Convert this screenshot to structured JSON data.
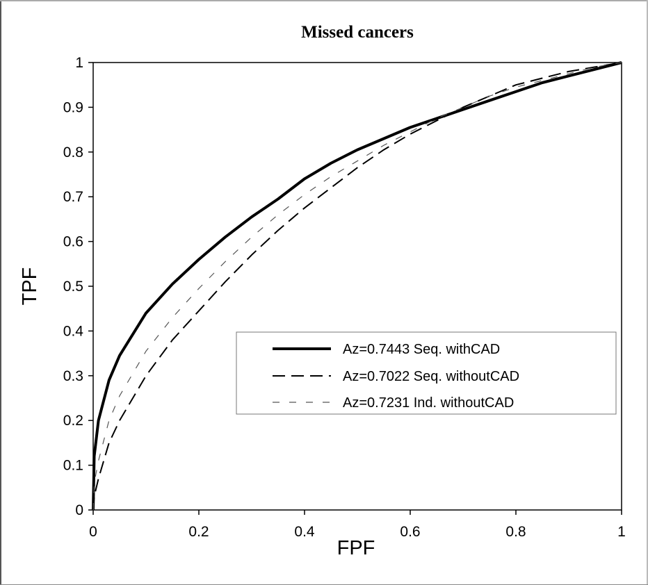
{
  "chart_data": {
    "type": "line",
    "title": "Missed cancers",
    "xlabel": "FPF",
    "ylabel": "TPF",
    "xlim": [
      0,
      1
    ],
    "ylim": [
      0,
      1
    ],
    "x_ticks": [
      "0",
      "0.2",
      "0.4",
      "0.6",
      "0.8",
      "1"
    ],
    "y_ticks": [
      "0",
      "0.1",
      "0.2",
      "0.3",
      "0.4",
      "0.5",
      "0.6",
      "0.7",
      "0.8",
      "0.9",
      "1"
    ],
    "grid": false,
    "legend_position": "center-right",
    "series": [
      {
        "name": "Az=0.7443 Seq. withCAD",
        "style": "solid-thick",
        "color": "#000000",
        "points": [
          [
            0,
            0
          ],
          [
            0.002,
            0.12
          ],
          [
            0.01,
            0.2
          ],
          [
            0.03,
            0.29
          ],
          [
            0.05,
            0.345
          ],
          [
            0.1,
            0.44
          ],
          [
            0.15,
            0.505
          ],
          [
            0.2,
            0.56
          ],
          [
            0.25,
            0.61
          ],
          [
            0.3,
            0.655
          ],
          [
            0.35,
            0.695
          ],
          [
            0.4,
            0.74
          ],
          [
            0.45,
            0.775
          ],
          [
            0.5,
            0.805
          ],
          [
            0.55,
            0.83
          ],
          [
            0.6,
            0.855
          ],
          [
            0.65,
            0.875
          ],
          [
            0.7,
            0.895
          ],
          [
            0.75,
            0.915
          ],
          [
            0.8,
            0.935
          ],
          [
            0.85,
            0.955
          ],
          [
            0.9,
            0.97
          ],
          [
            0.95,
            0.985
          ],
          [
            1,
            1
          ]
        ]
      },
      {
        "name": "Az=0.7022 Seq. withoutCAD",
        "style": "dashed",
        "color": "#000000",
        "points": [
          [
            0,
            0
          ],
          [
            0.002,
            0.03
          ],
          [
            0.01,
            0.07
          ],
          [
            0.03,
            0.15
          ],
          [
            0.05,
            0.2
          ],
          [
            0.1,
            0.3
          ],
          [
            0.15,
            0.38
          ],
          [
            0.2,
            0.445
          ],
          [
            0.25,
            0.51
          ],
          [
            0.3,
            0.57
          ],
          [
            0.35,
            0.625
          ],
          [
            0.4,
            0.675
          ],
          [
            0.45,
            0.72
          ],
          [
            0.5,
            0.765
          ],
          [
            0.55,
            0.805
          ],
          [
            0.6,
            0.84
          ],
          [
            0.65,
            0.87
          ],
          [
            0.7,
            0.9
          ],
          [
            0.75,
            0.925
          ],
          [
            0.8,
            0.95
          ],
          [
            0.85,
            0.965
          ],
          [
            0.9,
            0.98
          ],
          [
            0.95,
            0.99
          ],
          [
            1,
            1
          ]
        ]
      },
      {
        "name": "Az=0.7231 Ind. withoutCAD",
        "style": "dashed-thin",
        "color": "#555555",
        "points": [
          [
            0,
            0
          ],
          [
            0.002,
            0.06
          ],
          [
            0.01,
            0.11
          ],
          [
            0.03,
            0.2
          ],
          [
            0.05,
            0.255
          ],
          [
            0.1,
            0.355
          ],
          [
            0.15,
            0.43
          ],
          [
            0.2,
            0.495
          ],
          [
            0.25,
            0.555
          ],
          [
            0.3,
            0.61
          ],
          [
            0.35,
            0.66
          ],
          [
            0.4,
            0.705
          ],
          [
            0.45,
            0.745
          ],
          [
            0.5,
            0.78
          ],
          [
            0.55,
            0.815
          ],
          [
            0.6,
            0.845
          ],
          [
            0.65,
            0.875
          ],
          [
            0.7,
            0.9
          ],
          [
            0.75,
            0.925
          ],
          [
            0.8,
            0.945
          ],
          [
            0.85,
            0.96
          ],
          [
            0.9,
            0.975
          ],
          [
            0.95,
            0.99
          ],
          [
            1,
            1
          ]
        ]
      }
    ]
  }
}
